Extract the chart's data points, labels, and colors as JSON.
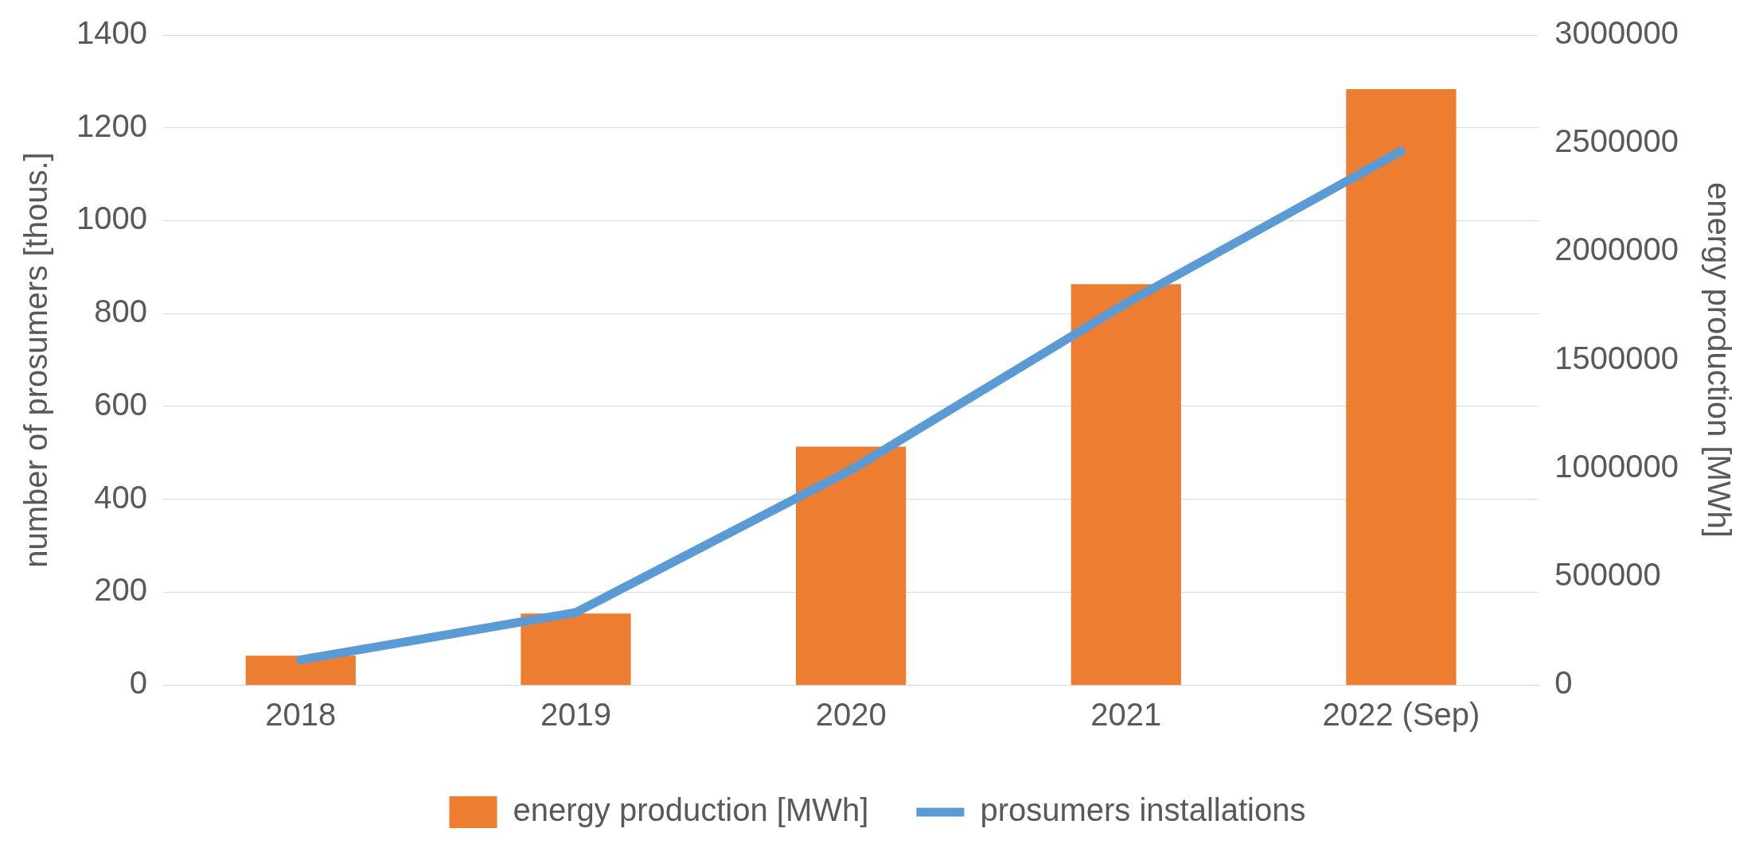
{
  "chart_data": {
    "type": "bar",
    "categories": [
      "2018",
      "2019",
      "2020",
      "2021",
      "2022 (Sep)"
    ],
    "ylabel": "number of prosumers [thous.]",
    "y2label": "energy production [MWh]",
    "series": [
      {
        "name": "energy production [MWh]",
        "axis": "y2",
        "color": "#ed7d31",
        "values": [
          135000,
          330000,
          1100000,
          1850000,
          2750000
        ]
      },
      {
        "name": "prosumers installations",
        "type": "line",
        "color": "#5b9bd5",
        "values": [
          54,
          156,
          463,
          822,
          1150
        ]
      }
    ],
    "ylim": [
      0,
      1400
    ],
    "yticks": [
      0,
      200,
      400,
      600,
      800,
      1000,
      1200,
      1400
    ],
    "y2lim": [
      0,
      3000000
    ],
    "y2ticks": [
      0,
      500000,
      1000000,
      1500000,
      2000000,
      2500000,
      3000000
    ],
    "grid": "y",
    "legend": "bottom"
  }
}
